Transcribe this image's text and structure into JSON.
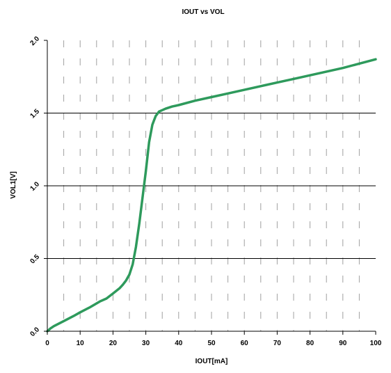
{
  "chart_data": {
    "type": "line",
    "title": "IOUT vs VOL",
    "xlabel": "IOUT[mA]",
    "ylabel": "VOL1[V]",
    "xlim": [
      0,
      100
    ],
    "ylim": [
      0,
      2.0
    ],
    "x_ticks": [
      0,
      10,
      20,
      30,
      40,
      50,
      60,
      70,
      80,
      90,
      100
    ],
    "x_tick_labels": [
      "0",
      "10",
      "20",
      "30",
      "40",
      "50",
      "60",
      "70",
      "80",
      "90",
      "100"
    ],
    "y_ticks": [
      0,
      0.5,
      1.0,
      1.5,
      2.0
    ],
    "y_tick_labels": [
      "0.0",
      "0.5",
      "1.0",
      "1.5",
      "2.0"
    ],
    "y_grid_solid": [
      0.5,
      1.0,
      1.5
    ],
    "x_grid_dashed": [
      5,
      10,
      15,
      20,
      25,
      30,
      35,
      40,
      45,
      50,
      55,
      60,
      65,
      70,
      75,
      80,
      85,
      90,
      95
    ],
    "grid": true,
    "legend": "none",
    "colors": {
      "series": "#2e9a5c",
      "axis": "#000000",
      "grid_dashed": "#a0a0a0",
      "grid_solid": "#000000"
    },
    "series": [
      {
        "x": [
          0,
          1,
          2,
          5,
          8,
          10,
          13,
          16,
          18,
          20,
          22,
          23,
          24,
          25,
          26,
          27,
          28,
          29,
          30,
          31,
          32,
          32.5,
          33,
          34,
          35,
          36,
          38,
          40,
          45,
          50,
          55,
          60,
          65,
          70,
          75,
          80,
          85,
          90,
          95,
          100
        ],
        "y": [
          0,
          0.02,
          0.035,
          0.07,
          0.105,
          0.13,
          0.165,
          0.205,
          0.225,
          0.26,
          0.295,
          0.32,
          0.35,
          0.39,
          0.46,
          0.58,
          0.74,
          0.92,
          1.1,
          1.3,
          1.42,
          1.45,
          1.48,
          1.51,
          1.52,
          1.53,
          1.545,
          1.555,
          1.585,
          1.61,
          1.635,
          1.66,
          1.685,
          1.71,
          1.735,
          1.76,
          1.785,
          1.81,
          1.84,
          1.87
        ]
      }
    ]
  }
}
